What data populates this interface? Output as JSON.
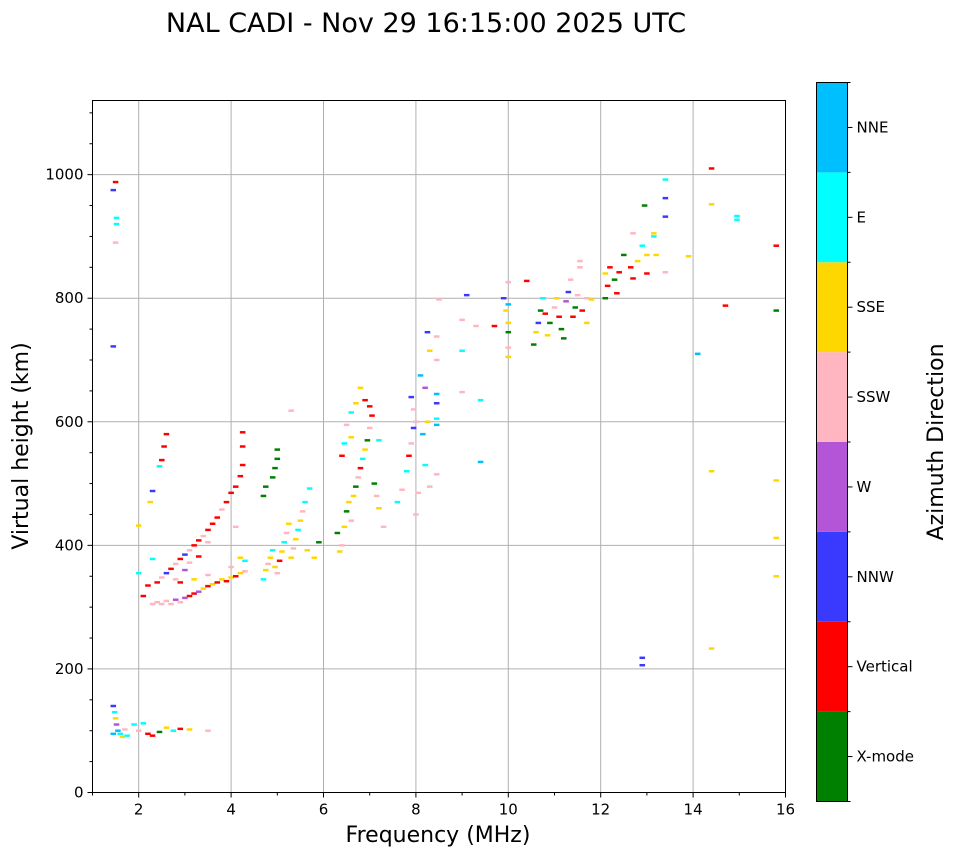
{
  "chart_data": {
    "type": "scatter",
    "title": "NAL CADI - Nov 29 16:15:00 2025 UTC",
    "xlabel": "Frequency (MHz)",
    "ylabel": "Virtual height (km)",
    "xlim": [
      1,
      16
    ],
    "ylim": [
      0,
      1120
    ],
    "grid": true,
    "xticks": [
      2,
      4,
      6,
      8,
      10,
      12,
      14,
      16
    ],
    "xtick_labels": [
      "2",
      "4",
      "6",
      "8",
      "10",
      "12",
      "14",
      "16"
    ],
    "yticks": [
      0,
      200,
      400,
      600,
      800,
      1000
    ],
    "ytick_labels": [
      "0",
      "200",
      "400",
      "600",
      "800",
      "1000"
    ],
    "colorbar": {
      "title": "Azimuth Direction",
      "categories": [
        "X-mode",
        "Vertical",
        "NNW",
        "W",
        "SSW",
        "SSE",
        "E",
        "NNE"
      ],
      "colors": [
        "#008000",
        "#ff0000",
        "#3a3aff",
        "#b455d8",
        "#ffb6c1",
        "#ffd700",
        "#00ffff",
        "#00bfff"
      ]
    },
    "point_height_km": 4,
    "points": [
      {
        "f": 1.45,
        "h": 975,
        "c": 2
      },
      {
        "f": 1.5,
        "h": 988,
        "c": 1
      },
      {
        "f": 1.52,
        "h": 930,
        "c": 6
      },
      {
        "f": 1.52,
        "h": 920,
        "c": 6
      },
      {
        "f": 1.5,
        "h": 890,
        "c": 4
      },
      {
        "f": 1.45,
        "h": 722,
        "c": 2
      },
      {
        "f": 1.45,
        "h": 140,
        "c": 2
      },
      {
        "f": 1.48,
        "h": 130,
        "c": 6
      },
      {
        "f": 1.5,
        "h": 120,
        "c": 5
      },
      {
        "f": 1.52,
        "h": 110,
        "c": 3
      },
      {
        "f": 1.55,
        "h": 100,
        "c": 7
      },
      {
        "f": 1.6,
        "h": 95,
        "c": 6
      },
      {
        "f": 1.65,
        "h": 90,
        "c": 5
      },
      {
        "f": 1.45,
        "h": 95,
        "c": 7
      },
      {
        "f": 1.7,
        "h": 102,
        "c": 4
      },
      {
        "f": 1.75,
        "h": 92,
        "c": 6
      },
      {
        "f": 1.9,
        "h": 110,
        "c": 6
      },
      {
        "f": 2.0,
        "h": 100,
        "c": 4
      },
      {
        "f": 2.1,
        "h": 112,
        "c": 6
      },
      {
        "f": 2.2,
        "h": 95,
        "c": 1
      },
      {
        "f": 2.3,
        "h": 92,
        "c": 1
      },
      {
        "f": 2.45,
        "h": 98,
        "c": 0
      },
      {
        "f": 2.6,
        "h": 105,
        "c": 5
      },
      {
        "f": 2.75,
        "h": 100,
        "c": 6
      },
      {
        "f": 2.9,
        "h": 103,
        "c": 1
      },
      {
        "f": 3.1,
        "h": 102,
        "c": 5
      },
      {
        "f": 3.5,
        "h": 100,
        "c": 4
      },
      {
        "f": 2.0,
        "h": 432,
        "c": 5
      },
      {
        "f": 2.0,
        "h": 355,
        "c": 6
      },
      {
        "f": 2.1,
        "h": 318,
        "c": 1
      },
      {
        "f": 2.2,
        "h": 335,
        "c": 1
      },
      {
        "f": 2.25,
        "h": 470,
        "c": 5
      },
      {
        "f": 2.3,
        "h": 488,
        "c": 2
      },
      {
        "f": 2.45,
        "h": 528,
        "c": 6
      },
      {
        "f": 2.5,
        "h": 538,
        "c": 1
      },
      {
        "f": 2.55,
        "h": 560,
        "c": 1
      },
      {
        "f": 2.6,
        "h": 580,
        "c": 1
      },
      {
        "f": 2.3,
        "h": 378,
        "c": 6
      },
      {
        "f": 2.4,
        "h": 340,
        "c": 1
      },
      {
        "f": 2.5,
        "h": 348,
        "c": 4
      },
      {
        "f": 2.6,
        "h": 355,
        "c": 2
      },
      {
        "f": 2.7,
        "h": 362,
        "c": 1
      },
      {
        "f": 2.8,
        "h": 370,
        "c": 4
      },
      {
        "f": 2.9,
        "h": 378,
        "c": 1
      },
      {
        "f": 3.0,
        "h": 385,
        "c": 2
      },
      {
        "f": 3.1,
        "h": 392,
        "c": 4
      },
      {
        "f": 3.2,
        "h": 400,
        "c": 1
      },
      {
        "f": 3.3,
        "h": 408,
        "c": 1
      },
      {
        "f": 3.4,
        "h": 415,
        "c": 4
      },
      {
        "f": 3.5,
        "h": 425,
        "c": 1
      },
      {
        "f": 3.6,
        "h": 435,
        "c": 1
      },
      {
        "f": 3.7,
        "h": 445,
        "c": 1
      },
      {
        "f": 3.8,
        "h": 458,
        "c": 4
      },
      {
        "f": 3.9,
        "h": 470,
        "c": 1
      },
      {
        "f": 4.0,
        "h": 485,
        "c": 1
      },
      {
        "f": 4.1,
        "h": 495,
        "c": 1
      },
      {
        "f": 4.2,
        "h": 512,
        "c": 1
      },
      {
        "f": 4.25,
        "h": 530,
        "c": 1
      },
      {
        "f": 4.25,
        "h": 560,
        "c": 1
      },
      {
        "f": 4.25,
        "h": 583,
        "c": 1
      },
      {
        "f": 2.8,
        "h": 345,
        "c": 4
      },
      {
        "f": 2.9,
        "h": 340,
        "c": 1
      },
      {
        "f": 3.0,
        "h": 360,
        "c": 3
      },
      {
        "f": 3.1,
        "h": 372,
        "c": 4
      },
      {
        "f": 3.3,
        "h": 382,
        "c": 1
      },
      {
        "f": 3.5,
        "h": 405,
        "c": 4
      },
      {
        "f": 2.3,
        "h": 305,
        "c": 4
      },
      {
        "f": 2.4,
        "h": 308,
        "c": 4
      },
      {
        "f": 2.5,
        "h": 305,
        "c": 4
      },
      {
        "f": 2.6,
        "h": 310,
        "c": 4
      },
      {
        "f": 2.7,
        "h": 305,
        "c": 4
      },
      {
        "f": 2.8,
        "h": 312,
        "c": 3
      },
      {
        "f": 2.9,
        "h": 308,
        "c": 4
      },
      {
        "f": 3.0,
        "h": 315,
        "c": 3
      },
      {
        "f": 3.1,
        "h": 318,
        "c": 1
      },
      {
        "f": 3.2,
        "h": 322,
        "c": 1
      },
      {
        "f": 3.3,
        "h": 325,
        "c": 3
      },
      {
        "f": 3.4,
        "h": 330,
        "c": 5
      },
      {
        "f": 3.5,
        "h": 334,
        "c": 1
      },
      {
        "f": 3.6,
        "h": 337,
        "c": 5
      },
      {
        "f": 3.7,
        "h": 340,
        "c": 1
      },
      {
        "f": 3.8,
        "h": 345,
        "c": 5
      },
      {
        "f": 3.9,
        "h": 342,
        "c": 1
      },
      {
        "f": 4.0,
        "h": 348,
        "c": 5
      },
      {
        "f": 4.1,
        "h": 350,
        "c": 1
      },
      {
        "f": 4.2,
        "h": 355,
        "c": 5
      },
      {
        "f": 4.3,
        "h": 358,
        "c": 4
      },
      {
        "f": 3.2,
        "h": 345,
        "c": 5
      },
      {
        "f": 3.5,
        "h": 352,
        "c": 4
      },
      {
        "f": 4.0,
        "h": 365,
        "c": 4
      },
      {
        "f": 4.3,
        "h": 375,
        "c": 6
      },
      {
        "f": 4.2,
        "h": 380,
        "c": 5
      },
      {
        "f": 4.1,
        "h": 430,
        "c": 4
      },
      {
        "f": 4.7,
        "h": 345,
        "c": 6
      },
      {
        "f": 4.75,
        "h": 360,
        "c": 5
      },
      {
        "f": 4.8,
        "h": 370,
        "c": 4
      },
      {
        "f": 4.85,
        "h": 380,
        "c": 5
      },
      {
        "f": 4.9,
        "h": 392,
        "c": 6
      },
      {
        "f": 4.95,
        "h": 365,
        "c": 5
      },
      {
        "f": 5.0,
        "h": 355,
        "c": 4
      },
      {
        "f": 5.05,
        "h": 375,
        "c": 1
      },
      {
        "f": 5.1,
        "h": 390,
        "c": 5
      },
      {
        "f": 5.15,
        "h": 405,
        "c": 6
      },
      {
        "f": 5.2,
        "h": 420,
        "c": 4
      },
      {
        "f": 5.25,
        "h": 435,
        "c": 5
      },
      {
        "f": 5.3,
        "h": 380,
        "c": 5
      },
      {
        "f": 5.35,
        "h": 395,
        "c": 4
      },
      {
        "f": 5.4,
        "h": 410,
        "c": 5
      },
      {
        "f": 5.45,
        "h": 425,
        "c": 6
      },
      {
        "f": 5.5,
        "h": 440,
        "c": 5
      },
      {
        "f": 5.55,
        "h": 455,
        "c": 4
      },
      {
        "f": 5.6,
        "h": 470,
        "c": 6
      },
      {
        "f": 5.65,
        "h": 392,
        "c": 5
      },
      {
        "f": 4.7,
        "h": 480,
        "c": 0
      },
      {
        "f": 4.75,
        "h": 495,
        "c": 0
      },
      {
        "f": 4.9,
        "h": 510,
        "c": 0
      },
      {
        "f": 4.95,
        "h": 525,
        "c": 0
      },
      {
        "f": 5.0,
        "h": 540,
        "c": 0
      },
      {
        "f": 5.0,
        "h": 555,
        "c": 0
      },
      {
        "f": 5.3,
        "h": 618,
        "c": 4
      },
      {
        "f": 5.7,
        "h": 492,
        "c": 6
      },
      {
        "f": 5.8,
        "h": 380,
        "c": 5
      },
      {
        "f": 5.9,
        "h": 405,
        "c": 0
      },
      {
        "f": 6.3,
        "h": 420,
        "c": 0
      },
      {
        "f": 6.35,
        "h": 390,
        "c": 5
      },
      {
        "f": 6.4,
        "h": 400,
        "c": 4
      },
      {
        "f": 6.45,
        "h": 430,
        "c": 5
      },
      {
        "f": 6.5,
        "h": 455,
        "c": 0
      },
      {
        "f": 6.55,
        "h": 470,
        "c": 5
      },
      {
        "f": 6.6,
        "h": 440,
        "c": 4
      },
      {
        "f": 6.65,
        "h": 480,
        "c": 5
      },
      {
        "f": 6.7,
        "h": 495,
        "c": 0
      },
      {
        "f": 6.75,
        "h": 510,
        "c": 4
      },
      {
        "f": 6.8,
        "h": 525,
        "c": 1
      },
      {
        "f": 6.85,
        "h": 540,
        "c": 6
      },
      {
        "f": 6.9,
        "h": 555,
        "c": 5
      },
      {
        "f": 6.95,
        "h": 570,
        "c": 0
      },
      {
        "f": 7.0,
        "h": 590,
        "c": 4
      },
      {
        "f": 7.05,
        "h": 610,
        "c": 1
      },
      {
        "f": 7.1,
        "h": 500,
        "c": 0
      },
      {
        "f": 7.15,
        "h": 480,
        "c": 4
      },
      {
        "f": 7.2,
        "h": 460,
        "c": 5
      },
      {
        "f": 7.3,
        "h": 430,
        "c": 4
      },
      {
        "f": 6.4,
        "h": 545,
        "c": 1
      },
      {
        "f": 6.45,
        "h": 565,
        "c": 6
      },
      {
        "f": 6.5,
        "h": 595,
        "c": 4
      },
      {
        "f": 6.6,
        "h": 615,
        "c": 6
      },
      {
        "f": 6.7,
        "h": 630,
        "c": 5
      },
      {
        "f": 6.8,
        "h": 655,
        "c": 5
      },
      {
        "f": 6.9,
        "h": 635,
        "c": 1
      },
      {
        "f": 7.0,
        "h": 625,
        "c": 1
      },
      {
        "f": 7.2,
        "h": 570,
        "c": 6
      },
      {
        "f": 6.6,
        "h": 575,
        "c": 5
      },
      {
        "f": 7.6,
        "h": 470,
        "c": 6
      },
      {
        "f": 7.7,
        "h": 490,
        "c": 4
      },
      {
        "f": 7.8,
        "h": 520,
        "c": 6
      },
      {
        "f": 7.85,
        "h": 545,
        "c": 1
      },
      {
        "f": 7.9,
        "h": 565,
        "c": 4
      },
      {
        "f": 7.95,
        "h": 590,
        "c": 2
      },
      {
        "f": 8.0,
        "h": 450,
        "c": 4
      },
      {
        "f": 8.05,
        "h": 485,
        "c": 4
      },
      {
        "f": 7.9,
        "h": 640,
        "c": 2
      },
      {
        "f": 7.95,
        "h": 620,
        "c": 4
      },
      {
        "f": 8.0,
        "h": 600,
        "c": 4
      },
      {
        "f": 8.1,
        "h": 675,
        "c": 7
      },
      {
        "f": 8.2,
        "h": 655,
        "c": 3
      },
      {
        "f": 8.15,
        "h": 580,
        "c": 7
      },
      {
        "f": 8.25,
        "h": 600,
        "c": 5
      },
      {
        "f": 8.2,
        "h": 530,
        "c": 6
      },
      {
        "f": 8.3,
        "h": 495,
        "c": 4
      },
      {
        "f": 8.3,
        "h": 715,
        "c": 5
      },
      {
        "f": 8.25,
        "h": 745,
        "c": 2
      },
      {
        "f": 8.45,
        "h": 738,
        "c": 4
      },
      {
        "f": 8.45,
        "h": 700,
        "c": 4
      },
      {
        "f": 8.45,
        "h": 645,
        "c": 7
      },
      {
        "f": 8.45,
        "h": 630,
        "c": 2
      },
      {
        "f": 8.45,
        "h": 595,
        "c": 7
      },
      {
        "f": 8.45,
        "h": 515,
        "c": 4
      },
      {
        "f": 8.5,
        "h": 798,
        "c": 4
      },
      {
        "f": 8.45,
        "h": 605,
        "c": 6
      },
      {
        "f": 9.0,
        "h": 648,
        "c": 4
      },
      {
        "f": 9.0,
        "h": 715,
        "c": 6
      },
      {
        "f": 9.0,
        "h": 765,
        "c": 4
      },
      {
        "f": 9.1,
        "h": 805,
        "c": 2
      },
      {
        "f": 9.3,
        "h": 755,
        "c": 4
      },
      {
        "f": 9.4,
        "h": 635,
        "c": 6
      },
      {
        "f": 9.4,
        "h": 535,
        "c": 7
      },
      {
        "f": 9.7,
        "h": 755,
        "c": 1
      },
      {
        "f": 9.9,
        "h": 800,
        "c": 2
      },
      {
        "f": 9.95,
        "h": 780,
        "c": 5
      },
      {
        "f": 10.0,
        "h": 760,
        "c": 5
      },
      {
        "f": 10.0,
        "h": 745,
        "c": 0
      },
      {
        "f": 10.0,
        "h": 720,
        "c": 4
      },
      {
        "f": 10.0,
        "h": 705,
        "c": 5
      },
      {
        "f": 10.0,
        "h": 826,
        "c": 4
      },
      {
        "f": 10.0,
        "h": 790,
        "c": 7
      },
      {
        "f": 10.4,
        "h": 828,
        "c": 1
      },
      {
        "f": 10.55,
        "h": 725,
        "c": 0
      },
      {
        "f": 10.6,
        "h": 745,
        "c": 5
      },
      {
        "f": 10.65,
        "h": 760,
        "c": 2
      },
      {
        "f": 10.7,
        "h": 780,
        "c": 0
      },
      {
        "f": 10.75,
        "h": 800,
        "c": 6
      },
      {
        "f": 10.8,
        "h": 775,
        "c": 1
      },
      {
        "f": 10.85,
        "h": 740,
        "c": 5
      },
      {
        "f": 10.9,
        "h": 760,
        "c": 0
      },
      {
        "f": 11.0,
        "h": 785,
        "c": 4
      },
      {
        "f": 11.05,
        "h": 800,
        "c": 5
      },
      {
        "f": 11.1,
        "h": 770,
        "c": 1
      },
      {
        "f": 11.15,
        "h": 750,
        "c": 0
      },
      {
        "f": 11.2,
        "h": 735,
        "c": 0
      },
      {
        "f": 11.25,
        "h": 795,
        "c": 3
      },
      {
        "f": 11.3,
        "h": 810,
        "c": 2
      },
      {
        "f": 11.35,
        "h": 830,
        "c": 4
      },
      {
        "f": 11.4,
        "h": 770,
        "c": 1
      },
      {
        "f": 11.45,
        "h": 785,
        "c": 0
      },
      {
        "f": 11.5,
        "h": 805,
        "c": 4
      },
      {
        "f": 11.55,
        "h": 850,
        "c": 4
      },
      {
        "f": 11.55,
        "h": 860,
        "c": 4
      },
      {
        "f": 11.6,
        "h": 780,
        "c": 1
      },
      {
        "f": 11.7,
        "h": 800,
        "c": 4
      },
      {
        "f": 11.7,
        "h": 760,
        "c": 5
      },
      {
        "f": 11.8,
        "h": 798,
        "c": 5
      },
      {
        "f": 12.1,
        "h": 800,
        "c": 0
      },
      {
        "f": 12.15,
        "h": 820,
        "c": 1
      },
      {
        "f": 12.1,
        "h": 840,
        "c": 5
      },
      {
        "f": 12.2,
        "h": 850,
        "c": 1
      },
      {
        "f": 12.3,
        "h": 830,
        "c": 0
      },
      {
        "f": 12.35,
        "h": 808,
        "c": 1
      },
      {
        "f": 12.4,
        "h": 842,
        "c": 1
      },
      {
        "f": 12.5,
        "h": 870,
        "c": 0
      },
      {
        "f": 12.65,
        "h": 850,
        "c": 1
      },
      {
        "f": 12.7,
        "h": 832,
        "c": 1
      },
      {
        "f": 12.8,
        "h": 860,
        "c": 5
      },
      {
        "f": 12.9,
        "h": 885,
        "c": 6
      },
      {
        "f": 12.95,
        "h": 950,
        "c": 0
      },
      {
        "f": 13.0,
        "h": 870,
        "c": 5
      },
      {
        "f": 13.0,
        "h": 840,
        "c": 1
      },
      {
        "f": 13.15,
        "h": 905,
        "c": 5
      },
      {
        "f": 13.15,
        "h": 900,
        "c": 6
      },
      {
        "f": 12.7,
        "h": 905,
        "c": 4
      },
      {
        "f": 13.2,
        "h": 870,
        "c": 5
      },
      {
        "f": 13.4,
        "h": 992,
        "c": 6
      },
      {
        "f": 13.4,
        "h": 962,
        "c": 2
      },
      {
        "f": 13.4,
        "h": 932,
        "c": 2
      },
      {
        "f": 13.4,
        "h": 842,
        "c": 4
      },
      {
        "f": 13.9,
        "h": 868,
        "c": 5
      },
      {
        "f": 14.1,
        "h": 710,
        "c": 7
      },
      {
        "f": 14.4,
        "h": 1010,
        "c": 1
      },
      {
        "f": 14.4,
        "h": 952,
        "c": 5
      },
      {
        "f": 14.4,
        "h": 520,
        "c": 5
      },
      {
        "f": 14.4,
        "h": 233,
        "c": 5
      },
      {
        "f": 14.7,
        "h": 788,
        "c": 1
      },
      {
        "f": 14.95,
        "h": 933,
        "c": 6
      },
      {
        "f": 14.95,
        "h": 927,
        "c": 6
      },
      {
        "f": 12.9,
        "h": 218,
        "c": 2
      },
      {
        "f": 12.9,
        "h": 206,
        "c": 2
      },
      {
        "f": 15.8,
        "h": 885,
        "c": 1
      },
      {
        "f": 15.8,
        "h": 780,
        "c": 0
      },
      {
        "f": 15.8,
        "h": 505,
        "c": 5
      },
      {
        "f": 15.8,
        "h": 412,
        "c": 5
      },
      {
        "f": 15.8,
        "h": 350,
        "c": 5
      }
    ]
  }
}
